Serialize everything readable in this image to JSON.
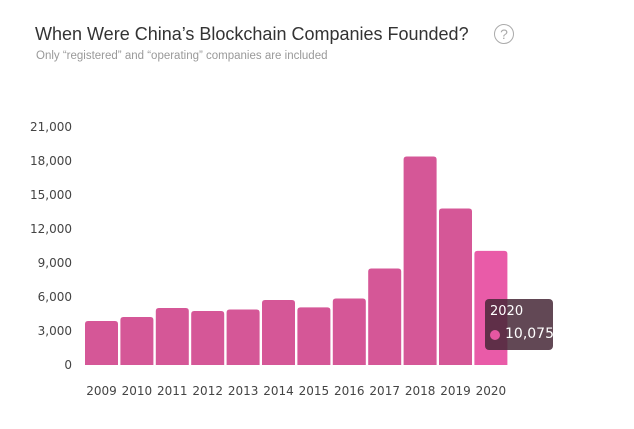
{
  "header": {
    "title": "When Were China’s Blockchain Companies Founded?",
    "subtitle": "Only “registered” and “operating” companies are included",
    "help_icon": "question-circle-icon",
    "help_glyph": "?"
  },
  "chart_data": {
    "type": "bar",
    "title": "When Were China’s Blockchain Companies Founded?",
    "subtitle": "Only “registered” and “operating” companies are included",
    "categories": [
      "2009",
      "2010",
      "2011",
      "2012",
      "2013",
      "2014",
      "2015",
      "2016",
      "2017",
      "2018",
      "2019",
      "2020"
    ],
    "values": [
      3880,
      4240,
      5030,
      4770,
      4900,
      5740,
      5080,
      5870,
      8520,
      18400,
      13810,
      10075
    ],
    "ylim": [
      0,
      21000
    ],
    "yticks": [
      "0",
      "3,000",
      "6,000",
      "9,000",
      "12,000",
      "15,000",
      "18,000",
      "21,000"
    ],
    "grid": false,
    "colors": {
      "bar": "#d55797",
      "highlight": "#e95ba8"
    },
    "tooltip": {
      "category": "2020",
      "value": "10,075"
    }
  }
}
